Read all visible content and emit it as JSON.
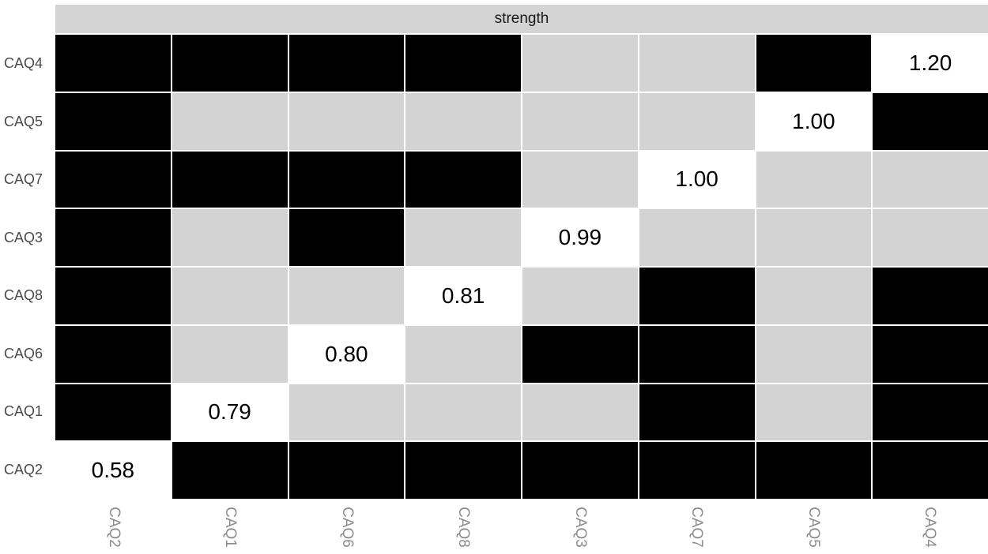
{
  "chart_data": {
    "type": "heatmap",
    "facet_label": "strength",
    "row_labels": [
      "CAQ4",
      "CAQ5",
      "CAQ7",
      "CAQ3",
      "CAQ8",
      "CAQ6",
      "CAQ1",
      "CAQ2"
    ],
    "col_labels": [
      "CAQ2",
      "CAQ1",
      "CAQ6",
      "CAQ8",
      "CAQ3",
      "CAQ7",
      "CAQ5",
      "CAQ4"
    ],
    "diagonal_values": [
      {
        "item": "CAQ2",
        "value": "0.58"
      },
      {
        "item": "CAQ1",
        "value": "0.79"
      },
      {
        "item": "CAQ6",
        "value": "0.80"
      },
      {
        "item": "CAQ8",
        "value": "0.81"
      },
      {
        "item": "CAQ3",
        "value": "0.99"
      },
      {
        "item": "CAQ7",
        "value": "1.00"
      },
      {
        "item": "CAQ5",
        "value": "1.00"
      },
      {
        "item": "CAQ4",
        "value": "1.20"
      }
    ],
    "cells": [
      [
        "black",
        "black",
        "black",
        "black",
        "gray",
        "gray",
        "black",
        "1.20"
      ],
      [
        "black",
        "gray",
        "gray",
        "gray",
        "gray",
        "gray",
        "1.00",
        "black"
      ],
      [
        "black",
        "black",
        "black",
        "black",
        "gray",
        "1.00",
        "gray",
        "gray"
      ],
      [
        "black",
        "gray",
        "black",
        "gray",
        "0.99",
        "gray",
        "gray",
        "gray"
      ],
      [
        "black",
        "gray",
        "gray",
        "0.81",
        "gray",
        "black",
        "gray",
        "black"
      ],
      [
        "black",
        "gray",
        "0.80",
        "gray",
        "black",
        "black",
        "gray",
        "black"
      ],
      [
        "black",
        "0.79",
        "gray",
        "gray",
        "gray",
        "black",
        "gray",
        "black"
      ],
      [
        "0.58",
        "black",
        "black",
        "black",
        "black",
        "black",
        "black",
        "black"
      ]
    ],
    "colors": {
      "black_cell": "#000000",
      "gray_cell": "#d3d3d3",
      "value_cell_bg": "#ffffff",
      "value_text": "#000000",
      "strip_bg": "#d4d4d4",
      "strip_text": "#1a1a1a",
      "row_label_text": "#4a4a4a",
      "col_label_text": "#8c8c8c",
      "grid_gap": "#ffffff"
    },
    "layout_hints": {
      "legend": "none",
      "grid": "white gaps between tiles",
      "col_label_rotation_deg": 90
    }
  }
}
